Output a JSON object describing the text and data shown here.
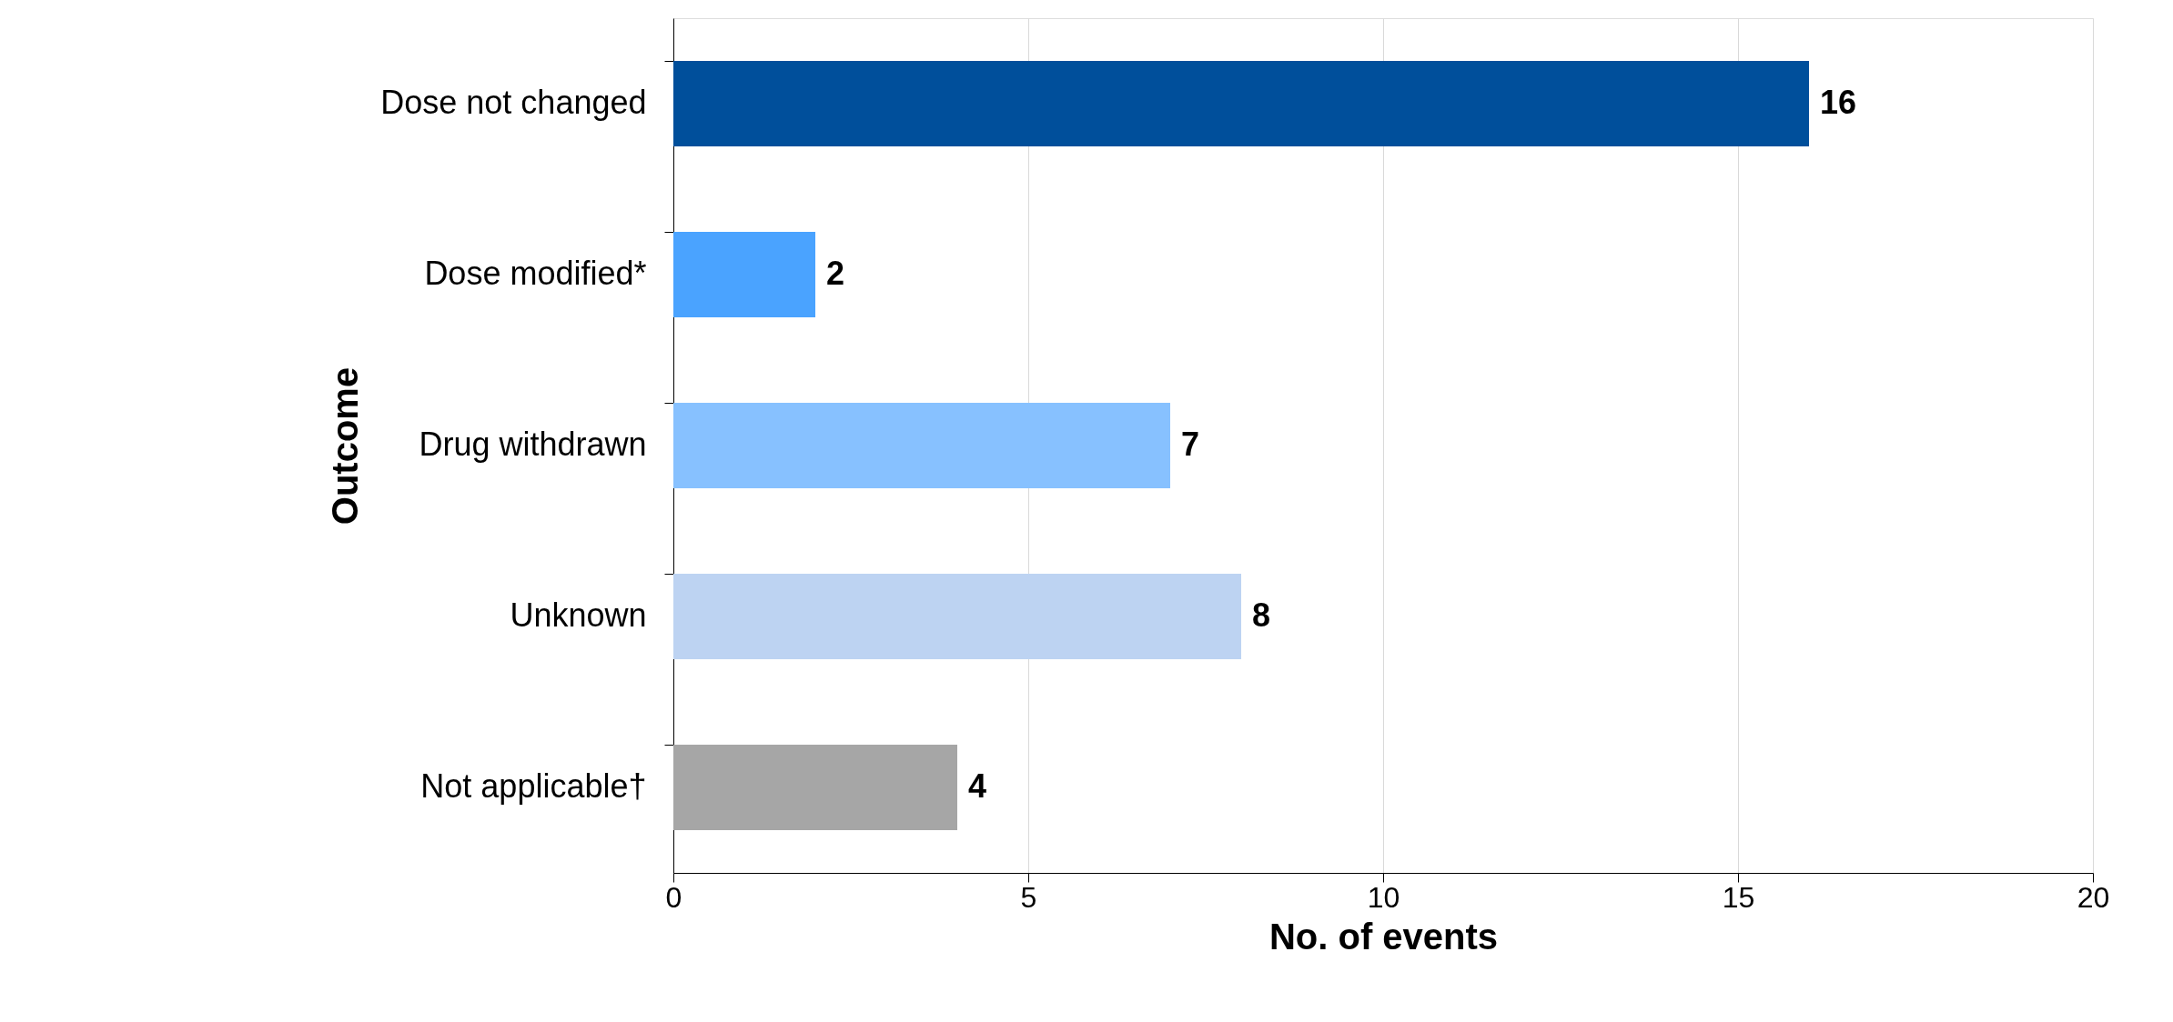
{
  "chart_data": {
    "type": "bar",
    "orientation": "horizontal",
    "xlabel": "No. of events",
    "ylabel": "Outcome",
    "categories": [
      "Dose not changed",
      "Dose modified*",
      "Drug withdrawn",
      "Unknown",
      "Not applicable†"
    ],
    "values": [
      16,
      2,
      7,
      8,
      4
    ],
    "colors": [
      "#004f9b",
      "#4aa3ff",
      "#87c1ff",
      "#bdd3f2",
      "#a6a6a6"
    ],
    "xlim": [
      0,
      20
    ],
    "xticks": [
      0,
      5,
      10,
      15,
      20
    ],
    "grid": "x",
    "data_labels": true
  }
}
